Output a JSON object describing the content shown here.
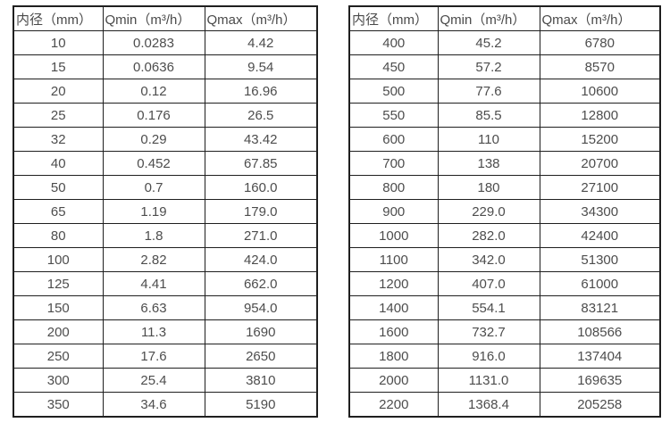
{
  "colors": {
    "border": "#1f1f1f",
    "text": "#4d4d4d",
    "background": "#ffffff"
  },
  "chart_data": [
    {
      "type": "table",
      "title": "",
      "columns": [
        "内径（mm）",
        "Qmin（m³/h）",
        "Qmax（m³/h）"
      ],
      "rows": [
        [
          "10",
          "0.0283",
          "4.42"
        ],
        [
          "15",
          "0.0636",
          "9.54"
        ],
        [
          "20",
          "0.12",
          "16.96"
        ],
        [
          "25",
          "0.176",
          "26.5"
        ],
        [
          "32",
          "0.29",
          "43.42"
        ],
        [
          "40",
          "0.452",
          "67.85"
        ],
        [
          "50",
          "0.7",
          "160.0"
        ],
        [
          "65",
          "1.19",
          "179.0"
        ],
        [
          "80",
          "1.8",
          "271.0"
        ],
        [
          "100",
          "2.82",
          "424.0"
        ],
        [
          "125",
          "4.41",
          "662.0"
        ],
        [
          "150",
          "6.63",
          "954.0"
        ],
        [
          "200",
          "11.3",
          "1690"
        ],
        [
          "250",
          "17.6",
          "2650"
        ],
        [
          "300",
          "25.4",
          "3810"
        ],
        [
          "350",
          "34.6",
          "5190"
        ]
      ]
    },
    {
      "type": "table",
      "title": "",
      "columns": [
        "内径（mm）",
        "Qmin（m³/h）",
        "Qmax（m³/h）"
      ],
      "rows": [
        [
          "400",
          "45.2",
          "6780"
        ],
        [
          "450",
          "57.2",
          "8570"
        ],
        [
          "500",
          "77.6",
          "10600"
        ],
        [
          "550",
          "85.5",
          "12800"
        ],
        [
          "600",
          "110",
          "15200"
        ],
        [
          "700",
          "138",
          "20700"
        ],
        [
          "800",
          "180",
          "27100"
        ],
        [
          "900",
          "229.0",
          "34300"
        ],
        [
          "1000",
          "282.0",
          "42400"
        ],
        [
          "1100",
          "342.0",
          "51300"
        ],
        [
          "1200",
          "407.0",
          "61000"
        ],
        [
          "1400",
          "554.1",
          "83121"
        ],
        [
          "1600",
          "732.7",
          "108566"
        ],
        [
          "1800",
          "916.0",
          "137404"
        ],
        [
          "2000",
          "1131.0",
          "169635"
        ],
        [
          "2200",
          "1368.4",
          "205258"
        ]
      ]
    }
  ]
}
